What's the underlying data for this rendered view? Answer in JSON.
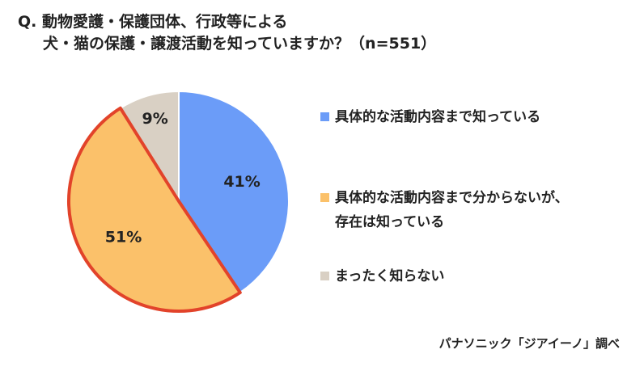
{
  "question": {
    "line1": "Q. 動物愛護・保護団体、行政等による",
    "line2": "犬・猫の保護・譲渡活動を知っていますか？（n=551）"
  },
  "chart_data": {
    "type": "pie",
    "slices": [
      {
        "label": "具体的な活動内容まで知っている",
        "value": 41,
        "value_label": "41%",
        "color": "#6b9cf8"
      },
      {
        "label": "具体的な活動内容まで分からないが、存在は知っている",
        "label_lines": [
          "具体的な活動内容まで分からないが、",
          "存在は知っている"
        ],
        "value": 51,
        "value_label": "51%",
        "color": "#fbc16a",
        "highlighted": true
      },
      {
        "label": "まったく知らない",
        "value": 9,
        "value_label": "9%",
        "color": "#d9d0c4"
      }
    ],
    "highlight_color": "#e2432a",
    "start": "top",
    "direction": "clockwise",
    "legend_position": "right"
  },
  "source": "パナソニック「ジアイーノ」調べ"
}
